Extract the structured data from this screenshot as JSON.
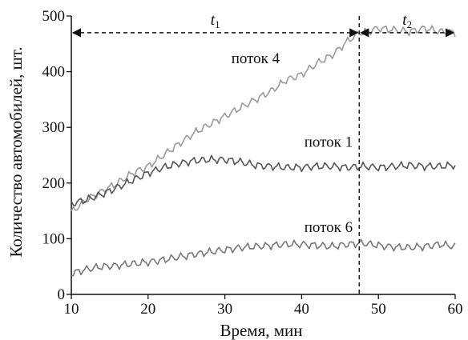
{
  "chart_data": {
    "type": "line",
    "title": "",
    "xlabel": "Время, мин",
    "ylabel": "Количество автомобилей, шт.",
    "xlim": [
      10,
      60
    ],
    "ylim": [
      0,
      500
    ],
    "xticks": [
      10,
      20,
      30,
      40,
      50,
      60
    ],
    "yticks": [
      0,
      100,
      200,
      300,
      400,
      500
    ],
    "grid": false,
    "legend": "none",
    "series": [
      {
        "name": "поток 4",
        "color": "#9a9a9a",
        "x": [
          10,
          12,
          14,
          16,
          18,
          20,
          22,
          24,
          26,
          28,
          30,
          32,
          34,
          36,
          38,
          40,
          42,
          44,
          46,
          47.5,
          48,
          50,
          52,
          54,
          56,
          58,
          60
        ],
        "y": [
          148,
          170,
          185,
          200,
          218,
          230,
          250,
          270,
          290,
          305,
          320,
          335,
          350,
          365,
          385,
          395,
          415,
          430,
          455,
          470,
          470,
          478,
          475,
          472,
          478,
          472,
          470
        ]
      },
      {
        "name": "поток 1",
        "color": "#555555",
        "x": [
          10,
          12,
          14,
          16,
          18,
          20,
          22,
          24,
          26,
          28,
          30,
          32,
          34,
          36,
          38,
          40,
          42,
          44,
          46,
          48,
          50,
          52,
          54,
          56,
          58,
          60
        ],
        "y": [
          163,
          170,
          180,
          192,
          205,
          218,
          228,
          235,
          240,
          242,
          242,
          238,
          232,
          230,
          228,
          228,
          230,
          230,
          228,
          230,
          228,
          230,
          232,
          230,
          230,
          232
        ]
      },
      {
        "name": "поток 6",
        "color": "#777777",
        "x": [
          10,
          12,
          14,
          16,
          18,
          20,
          22,
          24,
          26,
          28,
          30,
          32,
          34,
          36,
          38,
          40,
          42,
          44,
          46,
          48,
          50,
          52,
          54,
          56,
          58,
          60
        ],
        "y": [
          38,
          45,
          50,
          52,
          55,
          58,
          62,
          67,
          72,
          76,
          80,
          84,
          86,
          88,
          90,
          90,
          88,
          86,
          90,
          92,
          88,
          85,
          84,
          86,
          90,
          86
        ]
      }
    ],
    "annotations": {
      "vline_x": 47.5,
      "interval_1": {
        "label": "t",
        "sub": "1",
        "from": 10,
        "to": 47.5,
        "y": 470
      },
      "interval_2": {
        "label": "t",
        "sub": "2",
        "from": 47.5,
        "to": 60,
        "y": 470
      }
    },
    "series_labels": [
      {
        "text": "поток 4",
        "x": 34,
        "y": 415
      },
      {
        "text": "поток 1",
        "x": 43.5,
        "y": 265
      },
      {
        "text": "поток 6",
        "x": 43.5,
        "y": 112
      }
    ]
  }
}
